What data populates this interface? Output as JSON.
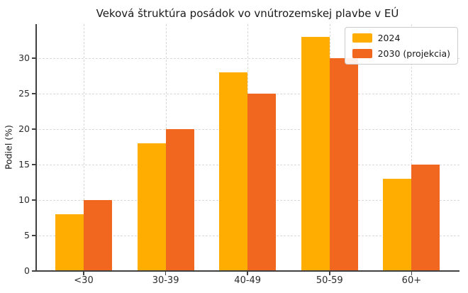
{
  "chart_data": {
    "type": "bar",
    "title": "Veková štruktúra posádok vo vnútrozemskej plavbe v EÚ",
    "xlabel": "",
    "ylabel": "Podiel (%)",
    "categories": [
      "<30",
      "30-39",
      "40-49",
      "50-59",
      "60+"
    ],
    "series": [
      {
        "name": "2024",
        "color": "#FFAD00",
        "values": [
          8,
          18,
          28,
          33,
          13
        ]
      },
      {
        "name": "2030 (projekcia)",
        "color": "#F2671F",
        "values": [
          10,
          20,
          25,
          30,
          15
        ]
      }
    ],
    "yticks": [
      0,
      5,
      10,
      15,
      20,
      25,
      30
    ],
    "ylim": [
      0,
      34.8
    ],
    "grid": true,
    "grid_style": "dashed",
    "legend_position": "upper right",
    "background_color": "#ffffff"
  }
}
